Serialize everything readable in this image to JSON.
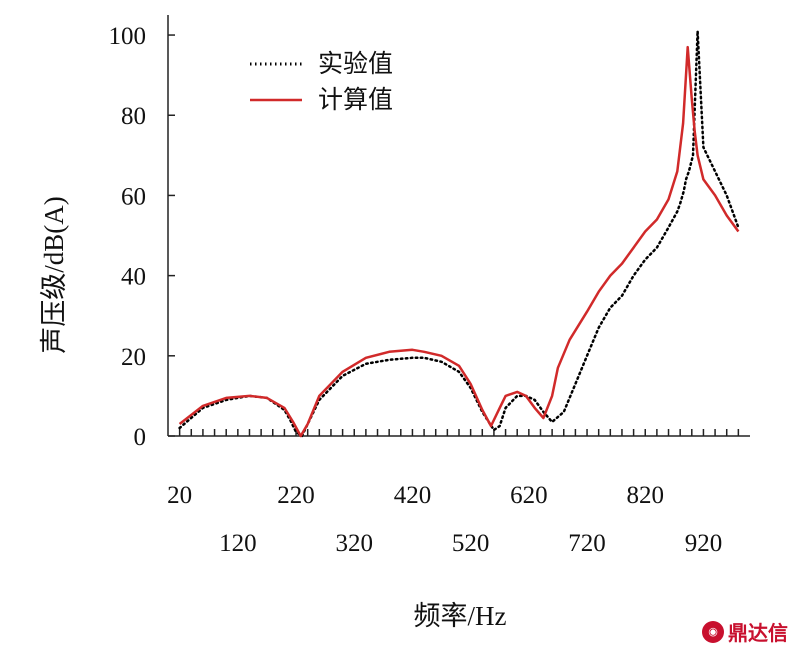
{
  "chart_data": {
    "type": "line",
    "title": "",
    "xlabel": "频率/Hz",
    "ylabel": "声压级/dB(A)",
    "xlim": [
      0,
      1000
    ],
    "ylim": [
      0,
      105
    ],
    "x_ticks_upper": [
      "20",
      "220",
      "420",
      "620",
      "820"
    ],
    "x_ticks_upper_values": [
      20,
      220,
      420,
      620,
      820
    ],
    "x_ticks_lower": [
      "120",
      "320",
      "520",
      "720",
      "920"
    ],
    "x_ticks_lower_values": [
      120,
      320,
      520,
      720,
      920
    ],
    "y_ticks": [
      "0",
      "20",
      "40",
      "60",
      "80",
      "100"
    ],
    "y_ticks_values": [
      0,
      20,
      40,
      60,
      80,
      100
    ],
    "grid": false,
    "legend_position": "top-left",
    "series": [
      {
        "name": "实验值",
        "style": "dotted",
        "color": "#000000",
        "x": [
          20,
          60,
          100,
          140,
          170,
          200,
          210,
          220,
          230,
          260,
          300,
          340,
          380,
          420,
          440,
          470,
          500,
          520,
          540,
          560,
          570,
          580,
          600,
          615,
          630,
          645,
          660,
          680,
          700,
          720,
          740,
          760,
          780,
          800,
          820,
          840,
          860,
          875,
          880,
          886,
          890,
          895,
          902,
          910,
          920,
          940,
          960,
          980
        ],
        "values": [
          2,
          7,
          9,
          10,
          9.5,
          6.5,
          4,
          1,
          0,
          9,
          15,
          18,
          19,
          19.5,
          19.5,
          18.5,
          16,
          12,
          6,
          1.5,
          2.5,
          7,
          10,
          10,
          9,
          6,
          3.5,
          6,
          13,
          20,
          27,
          32,
          35,
          40,
          44,
          47,
          52,
          56,
          58,
          61,
          64,
          66,
          70,
          101,
          72,
          66,
          60,
          52
        ]
      },
      {
        "name": "计算值",
        "style": "solid",
        "color": "#d12a2a",
        "x": [
          20,
          60,
          100,
          140,
          170,
          200,
          215,
          228,
          240,
          260,
          300,
          340,
          380,
          420,
          440,
          470,
          500,
          520,
          540,
          555,
          570,
          580,
          600,
          615,
          630,
          645,
          660,
          670,
          690,
          720,
          740,
          760,
          780,
          800,
          820,
          840,
          860,
          875,
          885,
          893,
          900,
          905,
          910,
          920,
          940,
          960,
          980
        ],
        "values": [
          3,
          7.5,
          9.5,
          10,
          9.5,
          7,
          3.5,
          0,
          3,
          10,
          16,
          19.5,
          21,
          21.5,
          21,
          20,
          17.5,
          13,
          6.5,
          2.5,
          7,
          10,
          11,
          10,
          7,
          4.5,
          10,
          17,
          24,
          31,
          36,
          40,
          43,
          47,
          51,
          54,
          59,
          66,
          78,
          97,
          84,
          76,
          70,
          64,
          60,
          55,
          51
        ]
      }
    ]
  },
  "watermark": {
    "text": "鼎达信",
    "color": "#c8102e"
  }
}
